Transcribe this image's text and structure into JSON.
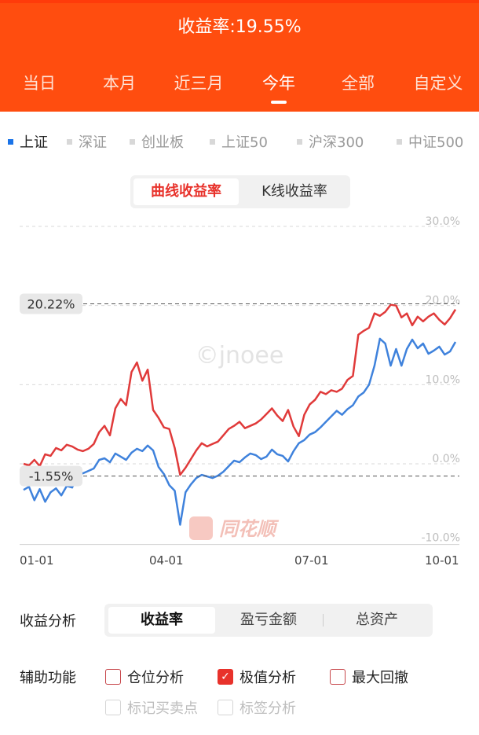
{
  "header": {
    "title": "收益率:19.55%",
    "tabs": [
      {
        "label": "当日",
        "active": false
      },
      {
        "label": "本月",
        "active": false
      },
      {
        "label": "近三月",
        "active": false
      },
      {
        "label": "今年",
        "active": true
      },
      {
        "label": "全部",
        "active": false
      },
      {
        "label": "自定义",
        "active": false
      }
    ]
  },
  "indices": [
    {
      "label": "上证",
      "active": true
    },
    {
      "label": "深证",
      "active": false
    },
    {
      "label": "创业板",
      "active": false
    },
    {
      "label": "上证50",
      "active": false
    },
    {
      "label": "沪深300",
      "active": false
    },
    {
      "label": "中证500",
      "active": false
    }
  ],
  "curve_switch": {
    "curve": "曲线收益率",
    "kline": "K线收益率"
  },
  "chart_data": {
    "type": "line",
    "y_ticks": [
      "30.0%",
      "20.0%",
      "10.0%",
      "0.0%",
      "-10.0%"
    ],
    "ylim": [
      -10,
      30
    ],
    "x_ticks": [
      "01-01",
      "04-01",
      "07-01",
      "10-01"
    ],
    "watermark": "©jnoee",
    "brand": "同花顺",
    "max_label": "20.22%",
    "min_label": "-1.55%",
    "max_value": 20.22,
    "min_value": -1.55,
    "colors": {
      "portfolio": "#e03a3a",
      "index": "#3f82dc"
    },
    "series": [
      {
        "values": [
          0.0,
          -0.2,
          0.5,
          -0.3,
          1.2,
          1.0,
          2.0,
          1.7,
          2.4,
          2.2,
          1.8,
          1.6,
          1.9,
          2.5,
          4.0,
          4.8,
          3.6,
          7.0,
          8.2,
          7.4,
          11.6,
          12.8,
          10.5,
          11.9,
          6.8,
          5.8,
          4.6,
          4.4,
          2.0,
          -1.4,
          -0.5,
          0.6,
          1.7,
          2.6,
          2.2,
          2.5,
          2.8,
          3.6,
          4.4,
          4.8,
          5.3,
          4.5,
          4.8,
          5.1,
          5.6,
          6.3,
          7.0,
          6.1,
          5.4,
          6.8,
          4.7,
          3.5,
          6.2,
          7.5,
          8.1,
          9.1,
          8.8,
          9.3,
          9.1,
          9.5,
          10.6,
          11.1,
          16.3,
          16.8,
          17.2,
          19.0,
          18.7,
          19.2,
          20.1,
          20.0,
          18.5,
          19.0,
          17.5,
          18.6,
          18.0,
          18.6,
          19.0,
          18.2,
          17.6,
          18.4,
          19.5
        ]
      },
      {
        "values": [
          -3.3,
          -2.9,
          -4.6,
          -3.2,
          -4.8,
          -3.6,
          -3.1,
          -4.0,
          -2.8,
          -3.0,
          -1.4,
          -1.2,
          -0.9,
          -0.6,
          0.5,
          0.7,
          0.2,
          1.3,
          0.9,
          0.5,
          1.4,
          1.9,
          1.6,
          2.3,
          1.7,
          -0.4,
          -1.3,
          -2.7,
          -3.4,
          -7.7,
          -3.6,
          -2.6,
          -1.8,
          -1.4,
          -1.6,
          -1.8,
          -1.5,
          -1.0,
          -0.3,
          0.4,
          0.2,
          0.8,
          1.3,
          1.1,
          0.6,
          0.9,
          1.8,
          1.2,
          1.0,
          0.3,
          1.6,
          2.6,
          3.0,
          3.7,
          4.0,
          4.6,
          5.3,
          6.0,
          6.7,
          6.2,
          6.9,
          7.4,
          8.5,
          9.0,
          10.0,
          12.4,
          15.8,
          15.2,
          12.4,
          14.5,
          12.4,
          14.5,
          15.7,
          14.6,
          15.2,
          13.9,
          14.3,
          14.8,
          13.8,
          14.2,
          15.4
        ]
      }
    ]
  },
  "analysis": {
    "label": "收益分析",
    "tabs": [
      {
        "label": "收益率",
        "active": true
      },
      {
        "label": "盈亏金额",
        "active": false
      },
      {
        "label": "总资产",
        "active": false
      }
    ]
  },
  "aux": {
    "label": "辅助功能",
    "options": [
      {
        "label": "仓位分析",
        "checked": false,
        "disabled": false
      },
      {
        "label": "极值分析",
        "checked": true,
        "disabled": false
      },
      {
        "label": "最大回撤",
        "checked": false,
        "disabled": false
      },
      {
        "label": "标记买卖点",
        "checked": false,
        "disabled": true
      },
      {
        "label": "标签分析",
        "checked": false,
        "disabled": true
      }
    ]
  }
}
